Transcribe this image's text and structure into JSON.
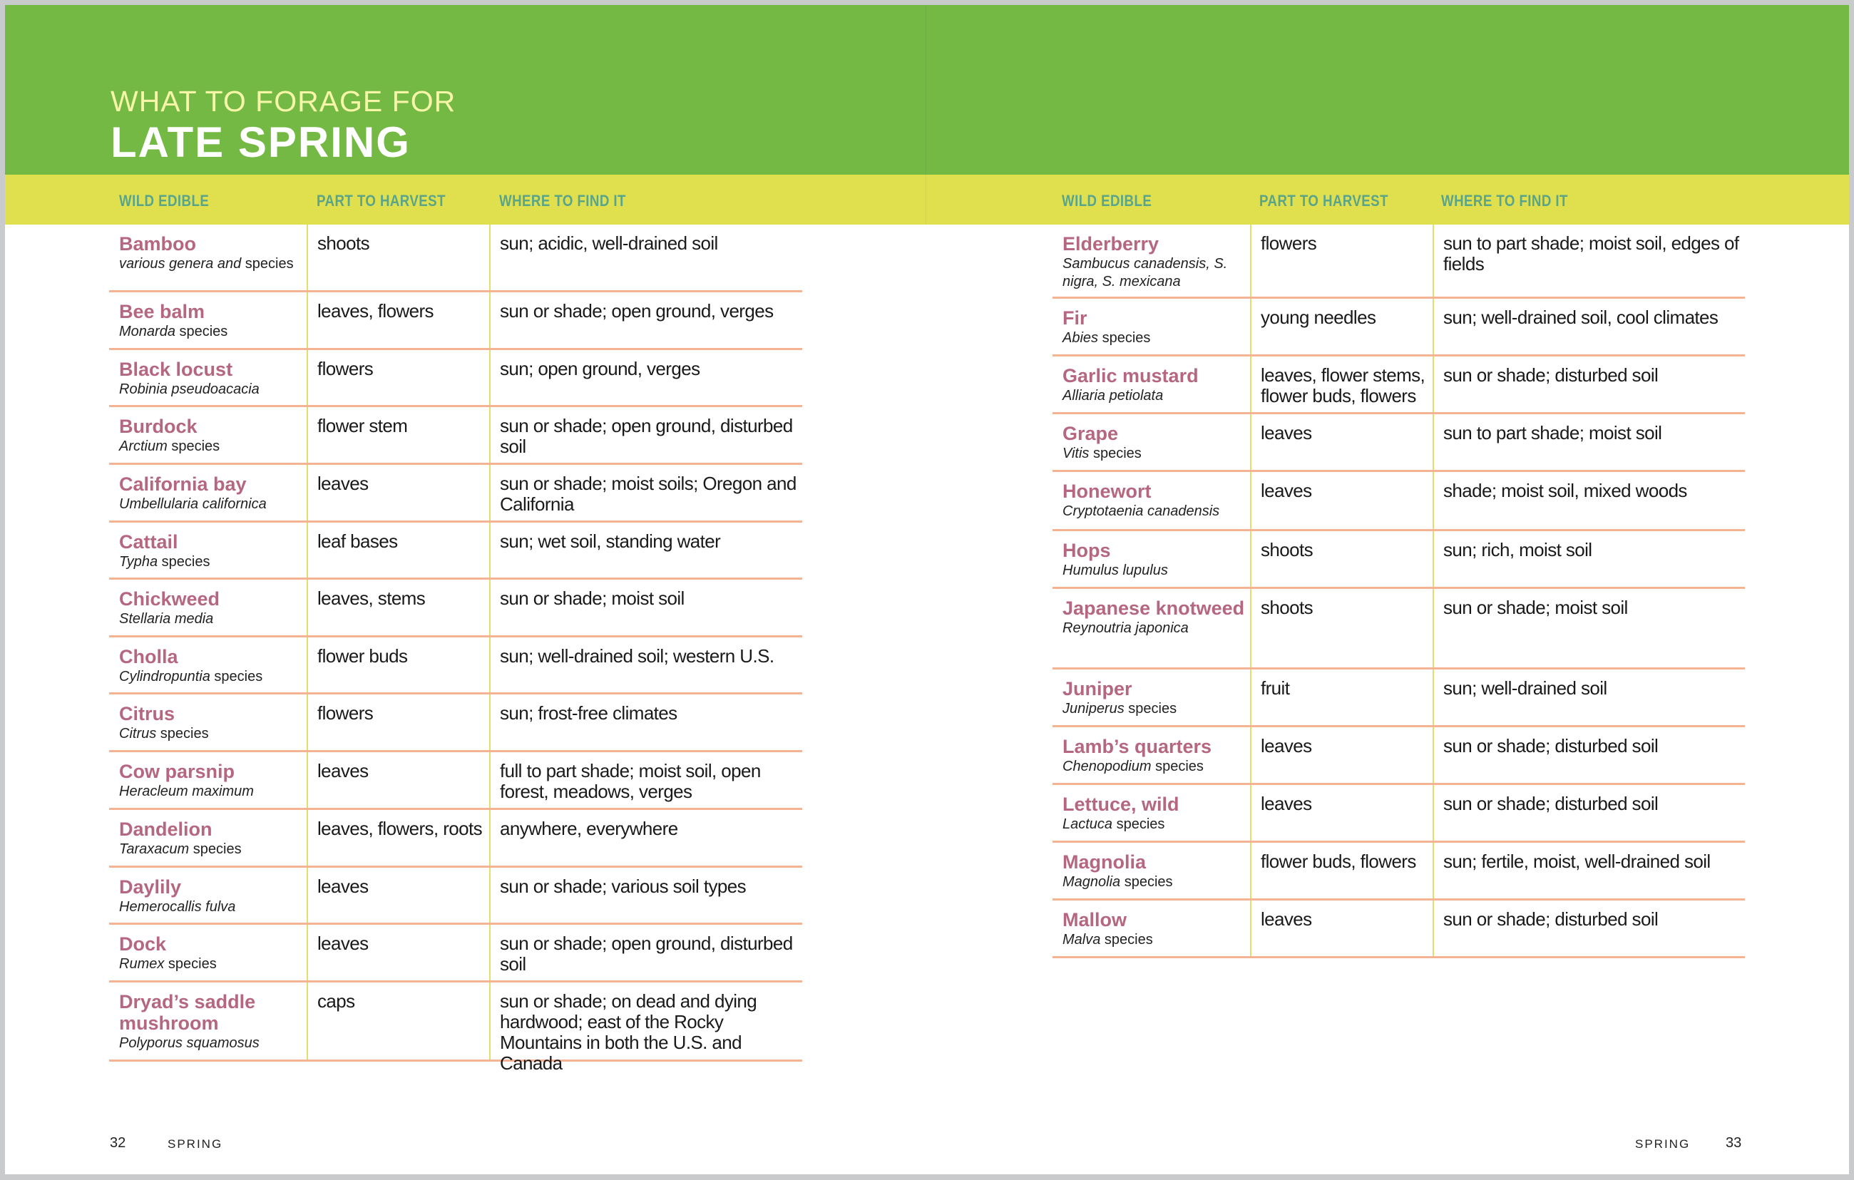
{
  "header": {
    "kicker": "WHAT TO FORAGE FOR",
    "title": "LATE SPRING"
  },
  "columns": [
    "WILD EDIBLE",
    "PART TO HARVEST",
    "WHERE TO FIND IT"
  ],
  "colors": {
    "green": "#74b944",
    "yellow": "#e0e04e",
    "name": "#b5677f",
    "header_text": "#5aa58a",
    "row_rule": "#f4b393"
  },
  "left_rows": [
    {
      "name": "Bamboo",
      "latin": "various genera and species",
      "part": "shoots",
      "where": "sun; acidic, well-drained soil"
    },
    {
      "name": "Bee balm",
      "latin": "Monarda species",
      "part": "leaves, flowers",
      "where": "sun or shade; open ground, verges"
    },
    {
      "name": "Black locust",
      "latin": "Robinia pseudoacacia",
      "part": "flowers",
      "where": "sun; open ground, verges"
    },
    {
      "name": "Burdock",
      "latin": "Arctium species",
      "part": "flower stem",
      "where": "sun or shade; open ground, disturbed soil"
    },
    {
      "name": "California bay",
      "latin": "Umbellularia californica",
      "part": "leaves",
      "where": "sun or shade; moist soils; Oregon and California"
    },
    {
      "name": "Cattail",
      "latin": "Typha species",
      "part": "leaf bases",
      "where": "sun; wet soil, standing water"
    },
    {
      "name": "Chickweed",
      "latin": "Stellaria media",
      "part": "leaves, stems",
      "where": "sun or shade; moist soil"
    },
    {
      "name": "Cholla",
      "latin": "Cylindropuntia species",
      "part": "flower buds",
      "where": "sun; well-drained soil; western U.S."
    },
    {
      "name": "Citrus",
      "latin": "Citrus species",
      "part": "flowers",
      "where": "sun; frost-free climates"
    },
    {
      "name": "Cow parsnip",
      "latin": "Heracleum maximum",
      "part": "leaves",
      "where": "full to part shade; moist soil, open forest, meadows, verges"
    },
    {
      "name": "Dandelion",
      "latin": "Taraxacum species",
      "part": "leaves, flowers, roots",
      "where": "anywhere, everywhere"
    },
    {
      "name": "Daylily",
      "latin": "Hemerocallis fulva",
      "part": "leaves",
      "where": "sun or shade; various soil types"
    },
    {
      "name": "Dock",
      "latin": "Rumex species",
      "part": "leaves",
      "where": "sun or shade; open ground, disturbed soil"
    },
    {
      "name": "Dryad’s saddle mushroom",
      "latin": "Polyporus squamosus",
      "part": "caps",
      "where": "sun or shade; on dead and dying hardwood; east of the Rocky Mountains in both the U.S. and Canada"
    }
  ],
  "right_rows": [
    {
      "name": "Elderberry",
      "latin": "Sambucus canadensis, S. nigra, S. mexicana",
      "part": "flowers",
      "where": "sun to part shade; moist soil, edges of fields"
    },
    {
      "name": "Fir",
      "latin": "Abies species",
      "part": "young needles",
      "where": "sun; well-drained soil, cool climates"
    },
    {
      "name": "Garlic mustard",
      "latin": "Alliaria petiolata",
      "part": "leaves, flower stems, flower buds, flowers",
      "where": "sun or shade; disturbed soil"
    },
    {
      "name": "Grape",
      "latin": "Vitis species",
      "part": "leaves",
      "where": "sun to part shade; moist soil"
    },
    {
      "name": "Honewort",
      "latin": "Cryptotaenia canadensis",
      "part": "leaves",
      "where": "shade; moist soil, mixed woods"
    },
    {
      "name": "Hops",
      "latin": "Humulus lupulus",
      "part": "shoots",
      "where": "sun; rich, moist soil"
    },
    {
      "name": "Japanese knotweed",
      "latin": "Reynoutria japonica",
      "part": "shoots",
      "where": "sun or shade; moist soil"
    },
    {
      "name": "Juniper",
      "latin": "Juniperus species",
      "part": "fruit",
      "where": "sun; well-drained soil"
    },
    {
      "name": "Lamb’s quarters",
      "latin": "Chenopodium species",
      "part": "leaves",
      "where": "sun or shade; disturbed soil"
    },
    {
      "name": "Lettuce, wild",
      "latin": "Lactuca species",
      "part": "leaves",
      "where": "sun or shade; disturbed soil"
    },
    {
      "name": "Magnolia",
      "latin": "Magnolia species",
      "part": "flower buds, flowers",
      "where": "sun; fertile, moist, well-drained soil"
    },
    {
      "name": "Mallow",
      "latin": "Malva species",
      "part": "leaves",
      "where": "sun or shade; disturbed soil"
    }
  ],
  "footer": {
    "left_page": "32",
    "left_label": "SPRING",
    "right_label": "SPRING",
    "right_page": "33"
  }
}
